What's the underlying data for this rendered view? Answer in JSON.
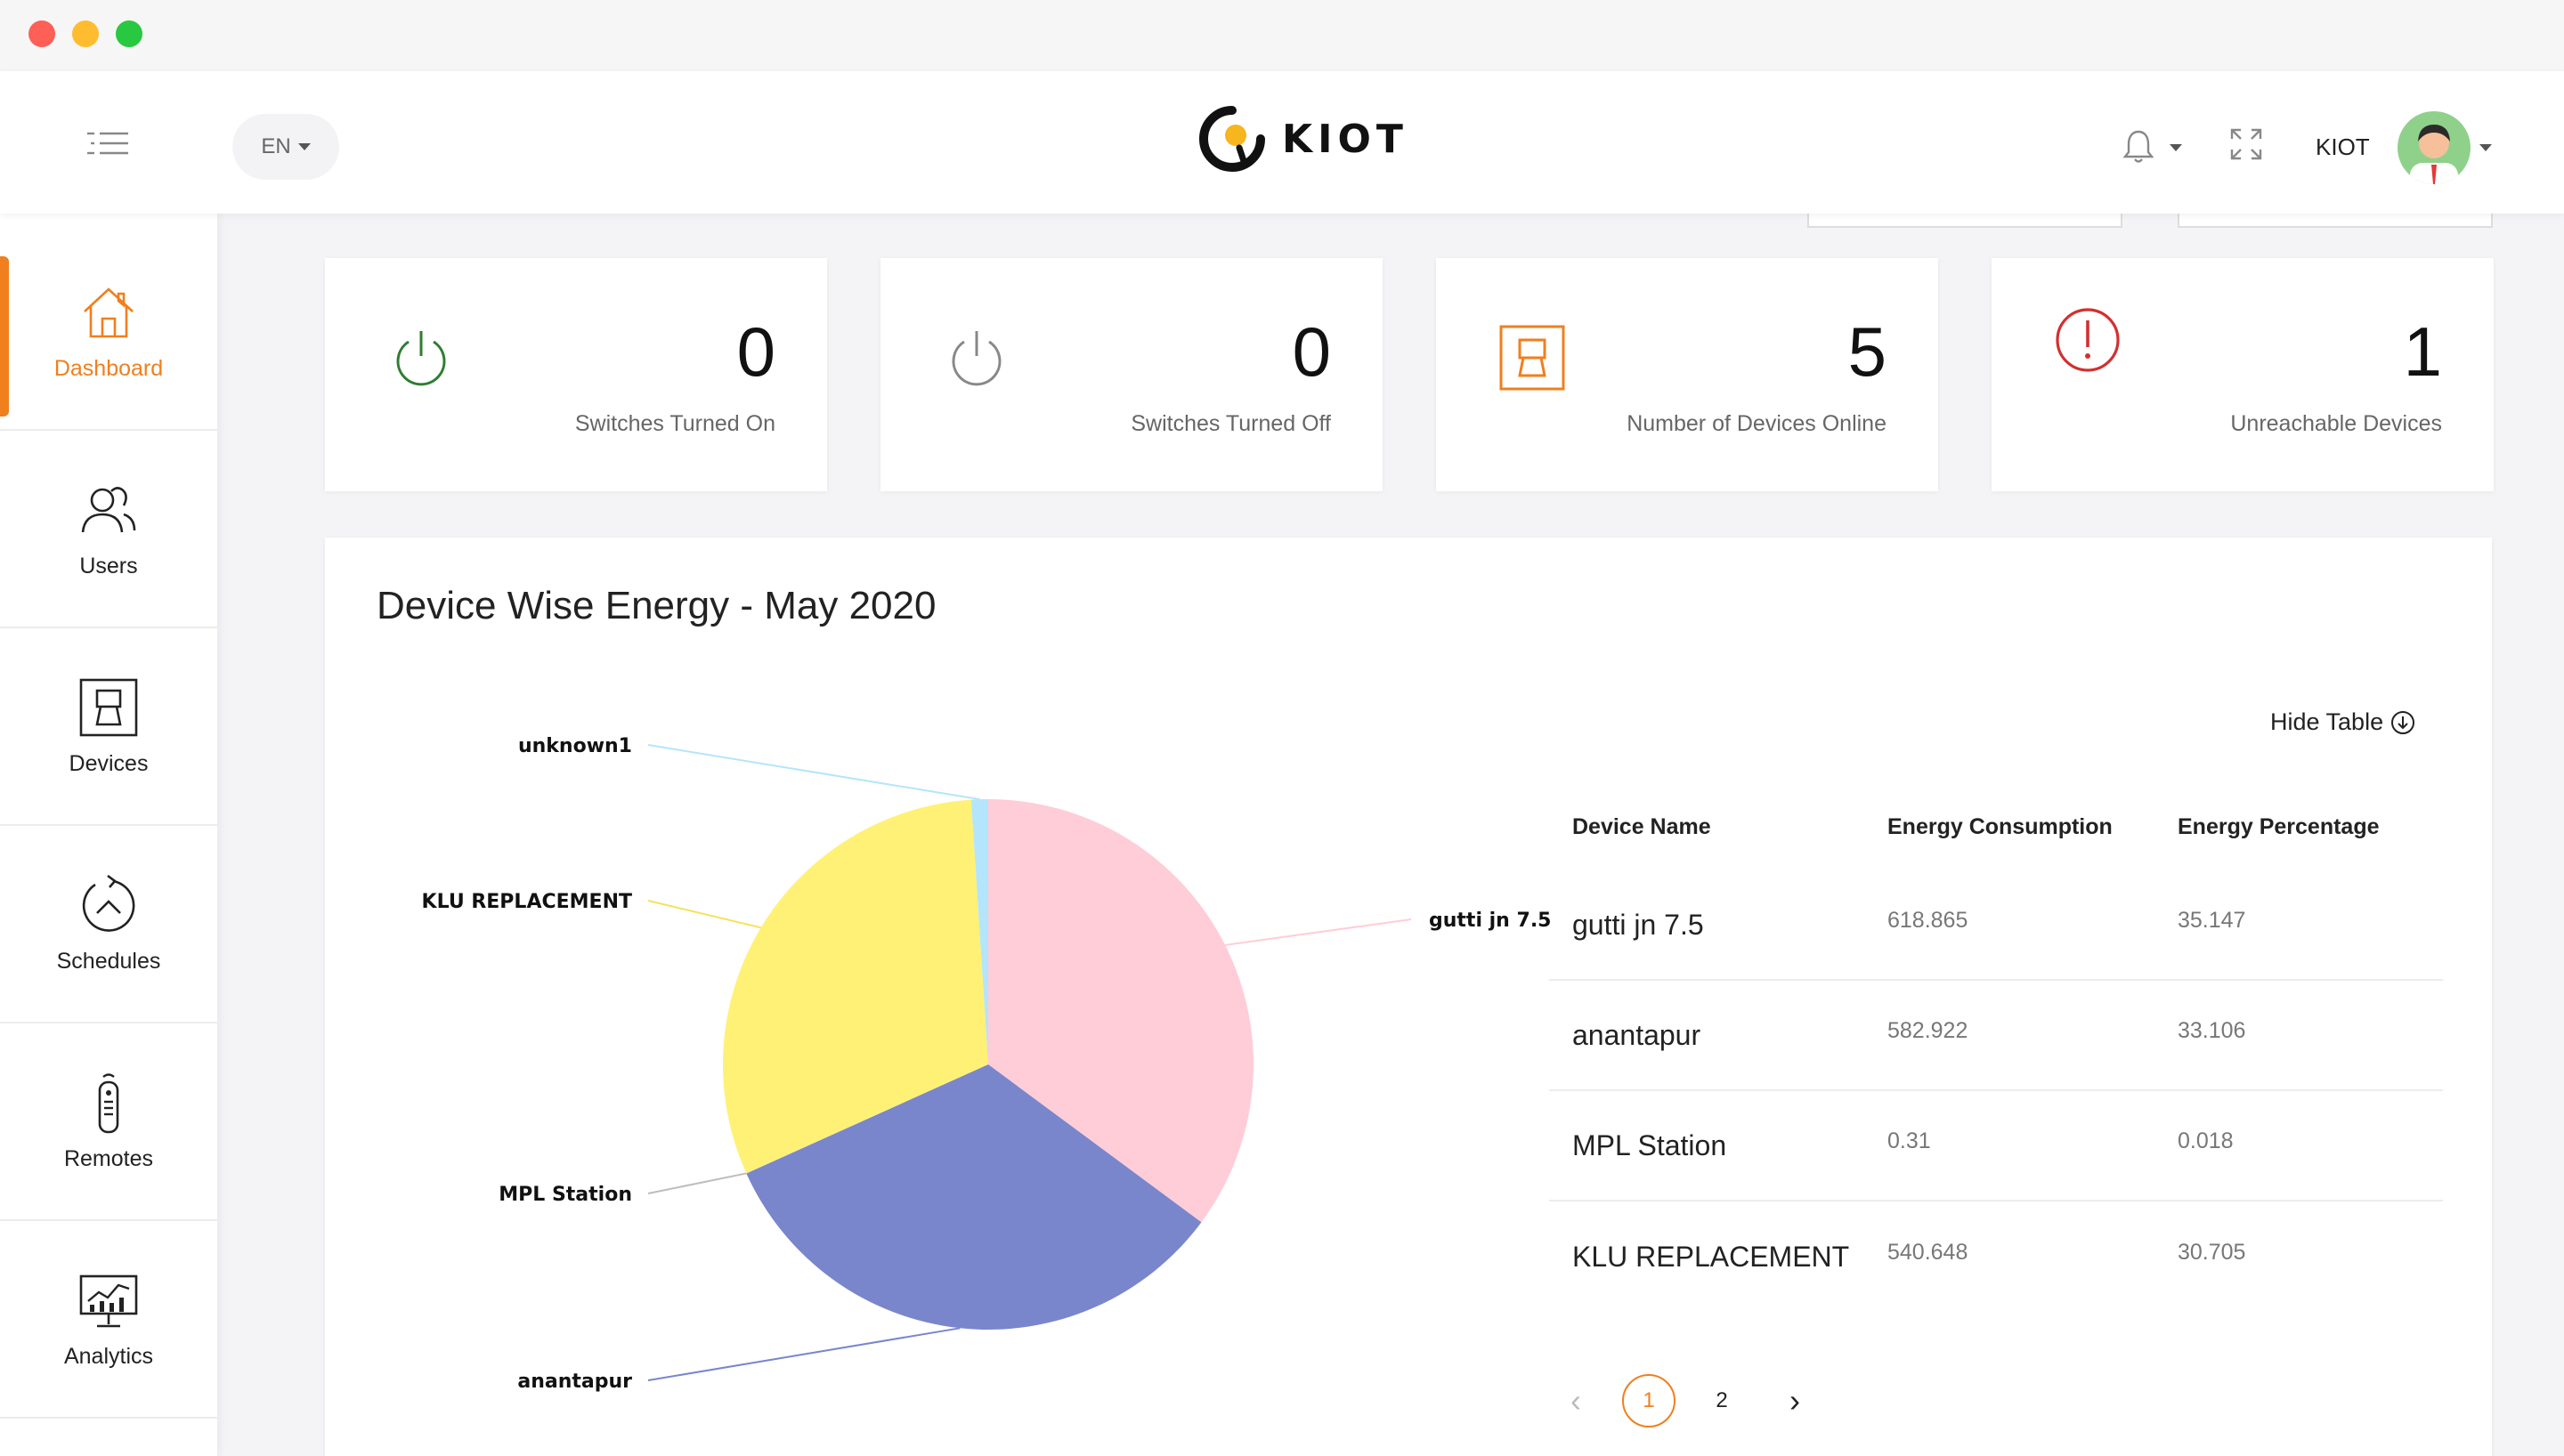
{
  "header": {
    "language": "EN",
    "brand": "KIOT",
    "username": "KIOT"
  },
  "sidebar": {
    "items": [
      {
        "label": "Dashboard",
        "icon": "home-icon",
        "active": true
      },
      {
        "label": "Users",
        "icon": "users-icon",
        "active": false
      },
      {
        "label": "Devices",
        "icon": "device-icon",
        "active": false
      },
      {
        "label": "Schedules",
        "icon": "schedule-icon",
        "active": false
      },
      {
        "label": "Remotes",
        "icon": "remote-icon",
        "active": false
      },
      {
        "label": "Analytics",
        "icon": "analytics-icon",
        "active": false
      }
    ]
  },
  "stats": [
    {
      "value": "0",
      "label": "Switches Turned On",
      "icon": "power-on-icon",
      "color": "#2e7d32"
    },
    {
      "value": "0",
      "label": "Switches Turned Off",
      "icon": "power-off-icon",
      "color": "#888888"
    },
    {
      "value": "5",
      "label": "Number of Devices Online",
      "icon": "device-online-icon",
      "color": "#f07f1e"
    },
    {
      "value": "1",
      "label": "Unreachable Devices",
      "icon": "alert-icon",
      "color": "#d32f2f"
    }
  ],
  "panel": {
    "title": "Device Wise Energy - May 2020",
    "hide_table": "Hide Table"
  },
  "chart_data": {
    "type": "pie",
    "title": "Device Wise Energy - May 2020",
    "slices": [
      {
        "label": "gutti jn 7.5",
        "value": 35.147,
        "color": "#ffcdd7"
      },
      {
        "label": "anantapur",
        "value": 33.106,
        "color": "#7986cb"
      },
      {
        "label": "MPL Station",
        "value": 0.018,
        "color": "#bdbdbd"
      },
      {
        "label": "KLU REPLACEMENT",
        "value": 30.705,
        "color": "#fff176"
      },
      {
        "label": "unknown1",
        "value": 1.024,
        "color": "#b3e5fc"
      }
    ]
  },
  "table": {
    "headers": [
      "Device Name",
      "Energy Consumption",
      "Energy Percentage"
    ],
    "rows": [
      {
        "name": "gutti jn 7.5",
        "consumption": "618.865",
        "percentage": "35.147"
      },
      {
        "name": "anantapur",
        "consumption": "582.922",
        "percentage": "33.106"
      },
      {
        "name": "MPL Station",
        "consumption": "0.31",
        "percentage": "0.018"
      },
      {
        "name": "KLU REPLACEMENT",
        "consumption": "540.648",
        "percentage": "30.705"
      }
    ]
  },
  "pagination": {
    "prev": "‹",
    "pages": [
      "1",
      "2"
    ],
    "current": "1",
    "next": "›"
  },
  "colors": {
    "accent": "#f07f1e"
  }
}
